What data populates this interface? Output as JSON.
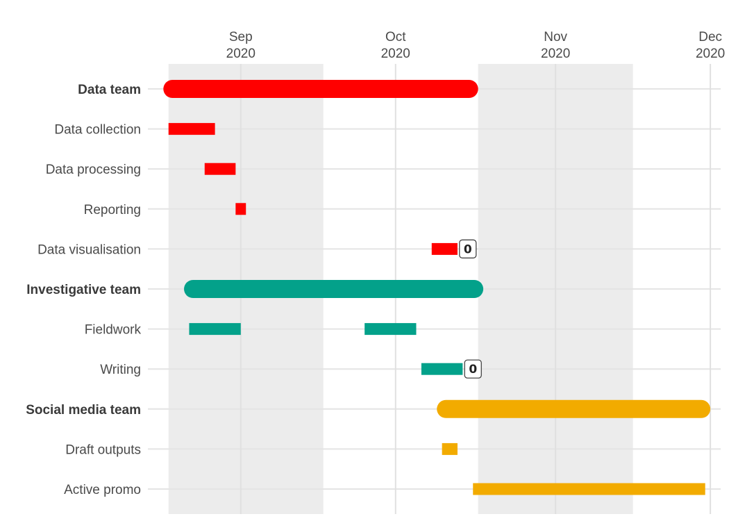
{
  "chart_data": {
    "type": "gantt",
    "title": "",
    "xlabel": "",
    "ylabel": "",
    "x_range": [
      "2020-08-14",
      "2020-12-03"
    ],
    "x_ticks": [
      {
        "date": "2020-09-01",
        "month": "Sep",
        "year": "2020"
      },
      {
        "date": "2020-10-01",
        "month": "Oct",
        "year": "2020"
      },
      {
        "date": "2020-11-01",
        "month": "Nov",
        "year": "2020"
      },
      {
        "date": "2020-12-01",
        "month": "Dec",
        "year": "2020"
      }
    ],
    "shaded_periods": [
      {
        "start": "2020-08-18",
        "end": "2020-09-17"
      },
      {
        "start": "2020-10-17",
        "end": "2020-11-16"
      }
    ],
    "grid": true,
    "legend": "none",
    "colors": {
      "Data team": "#ff0000",
      "Investigative team": "#03a18a",
      "Social media team": "#f2ab00"
    },
    "rows": [
      {
        "label": "Data team",
        "kind": "group",
        "team": "Data team",
        "bars": [
          {
            "start": "2020-08-17",
            "end": "2020-10-17"
          }
        ]
      },
      {
        "label": "Data collection",
        "kind": "task",
        "team": "Data team",
        "bars": [
          {
            "start": "2020-08-18",
            "end": "2020-08-27"
          }
        ]
      },
      {
        "label": "Data processing",
        "kind": "task",
        "team": "Data team",
        "bars": [
          {
            "start": "2020-08-25",
            "end": "2020-08-31"
          }
        ]
      },
      {
        "label": "Reporting",
        "kind": "task",
        "team": "Data team",
        "bars": [
          {
            "start": "2020-08-31",
            "end": "2020-09-02"
          }
        ]
      },
      {
        "label": "Data visualisation",
        "kind": "task",
        "team": "Data team",
        "bars": [
          {
            "start": "2020-10-08",
            "end": "2020-10-13"
          }
        ],
        "milestone": {
          "date": "2020-10-15",
          "text": "0"
        }
      },
      {
        "label": "Investigative team",
        "kind": "group",
        "team": "Investigative team",
        "bars": [
          {
            "start": "2020-08-21",
            "end": "2020-10-18"
          }
        ]
      },
      {
        "label": "Fieldwork",
        "kind": "task",
        "team": "Investigative team",
        "bars": [
          {
            "start": "2020-08-22",
            "end": "2020-09-01"
          },
          {
            "start": "2020-09-25",
            "end": "2020-10-05"
          }
        ]
      },
      {
        "label": "Writing",
        "kind": "task",
        "team": "Investigative team",
        "bars": [
          {
            "start": "2020-10-06",
            "end": "2020-10-14"
          }
        ],
        "milestone": {
          "date": "2020-10-16",
          "text": "0"
        }
      },
      {
        "label": "Social media team",
        "kind": "group",
        "team": "Social media team",
        "bars": [
          {
            "start": "2020-10-09",
            "end": "2020-12-01"
          }
        ]
      },
      {
        "label": "Draft outputs",
        "kind": "task",
        "team": "Social media team",
        "bars": [
          {
            "start": "2020-10-10",
            "end": "2020-10-13"
          }
        ]
      },
      {
        "label": "Active promo",
        "kind": "task",
        "team": "Social media team",
        "bars": [
          {
            "start": "2020-10-16",
            "end": "2020-11-30"
          }
        ]
      }
    ]
  }
}
